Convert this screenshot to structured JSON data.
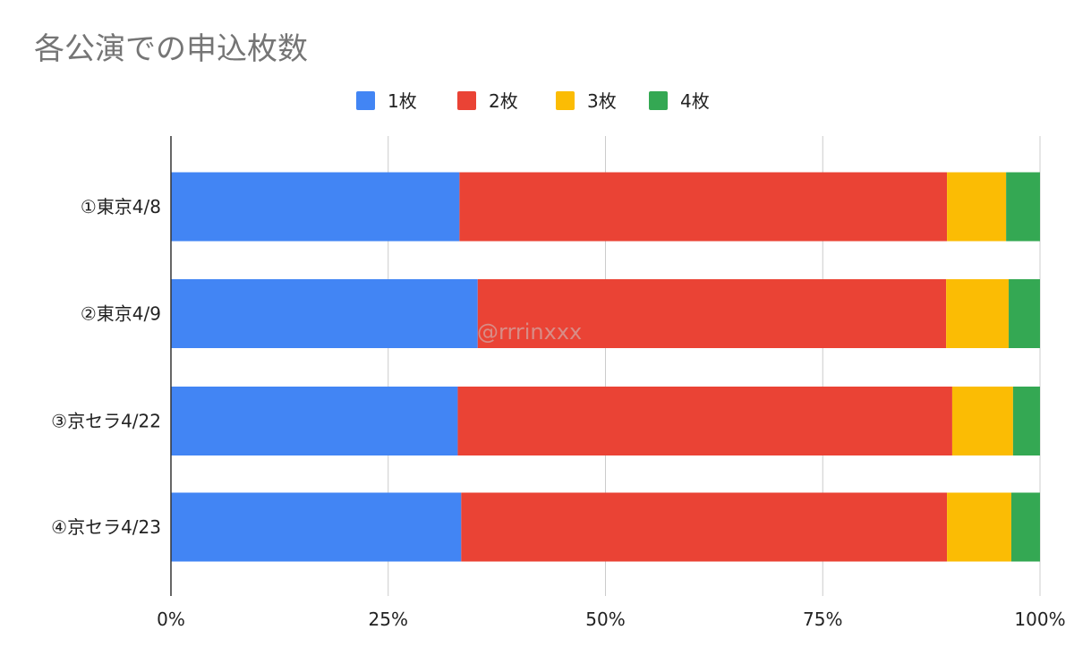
{
  "chart_data": {
    "type": "bar",
    "orientation": "horizontal",
    "stacked": "percent",
    "title": "各公演での申込枚数",
    "categories": [
      "①東京4/8",
      "②東京4/9",
      "③京セラ4/22",
      "④京セラ4/23"
    ],
    "series": [
      {
        "name": "1枚",
        "color": "#4285f4",
        "values": [
          33.2,
          35.3,
          33.0,
          33.4
        ]
      },
      {
        "name": "2枚",
        "color": "#ea4335",
        "values": [
          56.1,
          53.9,
          56.9,
          55.9
        ]
      },
      {
        "name": "3枚",
        "color": "#fbbc04",
        "values": [
          6.8,
          7.2,
          7.0,
          7.4
        ]
      },
      {
        "name": "4枚",
        "color": "#34a853",
        "values": [
          3.9,
          3.6,
          3.1,
          3.3
        ]
      }
    ],
    "x_ticks": [
      "0%",
      "25%",
      "50%",
      "75%",
      "100%"
    ],
    "xlim": [
      0,
      100
    ],
    "legend_position": "top",
    "grid": true,
    "watermark": "@rrrinxxx"
  }
}
